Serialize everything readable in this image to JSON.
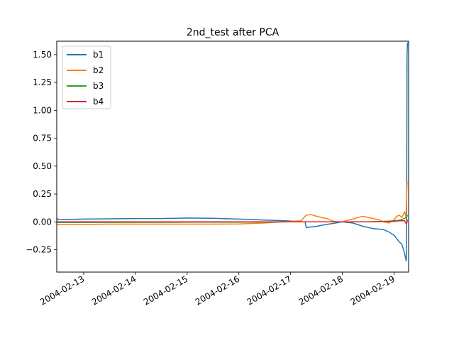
{
  "chart_data": {
    "type": "line",
    "title": "2nd_test after PCA",
    "xlabel": "",
    "ylabel": "",
    "x_range": [
      12.48,
      19.28
    ],
    "x_ticks": [
      13,
      14,
      15,
      16,
      17,
      18,
      19
    ],
    "x_tick_labels": [
      "2004-02-13",
      "2004-02-14",
      "2004-02-15",
      "2004-02-16",
      "2004-02-17",
      "2004-02-18",
      "2004-02-19"
    ],
    "ylim": [
      -0.45,
      1.62
    ],
    "y_ticks": [
      -0.25,
      0.0,
      0.25,
      0.5,
      0.75,
      1.0,
      1.25,
      1.5
    ],
    "y_tick_labels": [
      "−0.25",
      "0.00",
      "0.25",
      "0.50",
      "0.75",
      "1.00",
      "1.25",
      "1.50"
    ],
    "legend_position": "top-left",
    "series": [
      {
        "name": "b1",
        "color": "#1f77b4",
        "x": [
          12.48,
          12.5,
          13.0,
          13.5,
          14.0,
          14.5,
          15.0,
          15.5,
          16.0,
          16.3,
          16.6,
          16.9,
          17.1,
          17.28,
          17.3,
          17.4,
          17.5,
          17.6,
          17.8,
          18.0,
          18.2,
          18.4,
          18.6,
          18.8,
          18.9,
          19.0,
          19.1,
          19.15,
          19.2,
          19.22,
          19.235,
          19.24,
          19.25,
          19.26
        ],
        "values": [
          0.035,
          0.02,
          0.025,
          0.028,
          0.03,
          0.03,
          0.035,
          0.032,
          0.025,
          0.02,
          0.015,
          0.01,
          0.005,
          0.0,
          -0.05,
          -0.045,
          -0.04,
          -0.03,
          -0.015,
          0.0,
          -0.01,
          -0.04,
          -0.06,
          -0.07,
          -0.09,
          -0.12,
          -0.18,
          -0.2,
          -0.28,
          -0.32,
          -0.35,
          -0.3,
          1.5,
          1.61
        ]
      },
      {
        "name": "b2",
        "color": "#ff7f0e",
        "x": [
          12.48,
          12.5,
          13.0,
          13.5,
          14.0,
          14.5,
          15.0,
          15.5,
          16.0,
          16.5,
          17.0,
          17.2,
          17.3,
          17.4,
          17.5,
          17.6,
          17.7,
          17.8,
          17.9,
          18.0,
          18.1,
          18.2,
          18.3,
          18.4,
          18.5,
          18.6,
          18.7,
          18.8,
          18.9,
          19.0,
          19.05,
          19.1,
          19.15,
          19.2,
          19.23,
          19.25,
          19.26
        ],
        "values": [
          -0.03,
          -0.025,
          -0.022,
          -0.02,
          -0.02,
          -0.02,
          -0.02,
          -0.02,
          -0.018,
          -0.01,
          0.005,
          0.01,
          0.06,
          0.065,
          0.05,
          0.04,
          0.03,
          0.01,
          0.0,
          0.0,
          0.015,
          0.025,
          0.04,
          0.05,
          0.04,
          0.03,
          0.02,
          0.0,
          -0.01,
          0.02,
          0.05,
          0.06,
          0.04,
          0.09,
          0.05,
          0.35,
          0.36
        ]
      },
      {
        "name": "b3",
        "color": "#2ca02c",
        "x": [
          12.48,
          13.0,
          14.0,
          15.0,
          16.0,
          17.0,
          17.5,
          18.0,
          18.5,
          18.8,
          19.0,
          19.1,
          19.2,
          19.25,
          19.26
        ],
        "values": [
          -0.005,
          -0.005,
          -0.004,
          -0.003,
          -0.002,
          0.0,
          0.0,
          0.0,
          0.0,
          0.005,
          0.01,
          0.015,
          0.03,
          0.05,
          0.06
        ]
      },
      {
        "name": "b4",
        "color": "#d62728",
        "x": [
          12.48,
          13.0,
          14.0,
          15.0,
          16.0,
          17.0,
          17.5,
          18.0,
          18.5,
          18.8,
          19.0,
          19.1,
          19.2,
          19.24,
          19.26
        ],
        "values": [
          0.0,
          0.0,
          0.0,
          0.001,
          0.0,
          0.0,
          0.0,
          0.0,
          0.0,
          0.003,
          0.005,
          0.01,
          0.01,
          -0.02,
          0.02
        ]
      }
    ]
  }
}
